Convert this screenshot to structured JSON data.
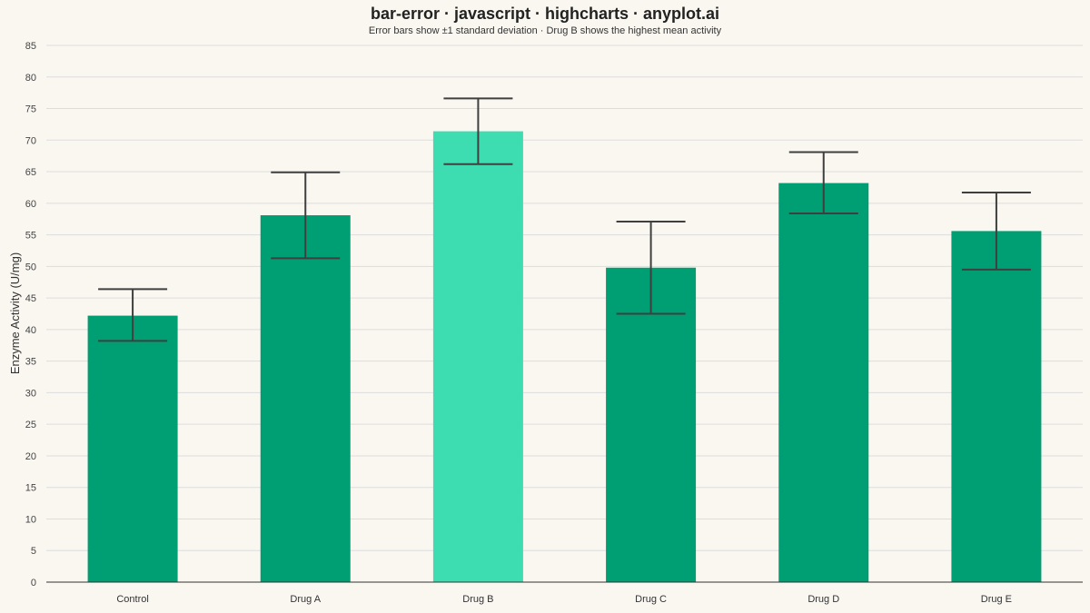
{
  "chart_data": {
    "type": "bar",
    "title": "bar-error · javascript · highcharts · anyplot.ai",
    "subtitle": "Error bars show ±1 standard deviation · Drug B shows the highest mean activity",
    "xlabel": "",
    "ylabel": "Enzyme Activity (U/mg)",
    "ylim": [
      0,
      85
    ],
    "yticks": [
      0,
      5,
      10,
      15,
      20,
      25,
      30,
      35,
      40,
      45,
      50,
      55,
      60,
      65,
      70,
      75,
      80,
      85
    ],
    "grid": true,
    "categories": [
      "Control",
      "Drug A",
      "Drug B",
      "Drug C",
      "Drug D",
      "Drug E"
    ],
    "values": [
      42.2,
      58.1,
      71.4,
      49.8,
      63.2,
      55.6
    ],
    "error_low": [
      38.2,
      51.3,
      66.2,
      42.5,
      58.4,
      49.5
    ],
    "error_high": [
      46.4,
      64.9,
      76.6,
      57.1,
      68.1,
      61.7
    ],
    "highlight_category": "Drug B",
    "colors": {
      "bar": "#009E73",
      "highlight_bar": "#3EDDB1",
      "error_bar": "#3F3F3F",
      "grid": "#DDDDDD",
      "axis": "#333333",
      "background": "#FAF7F1"
    }
  }
}
